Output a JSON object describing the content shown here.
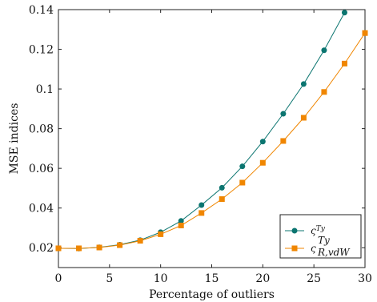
{
  "chart_data": {
    "type": "line",
    "xlabel": "Percentage of outliers",
    "ylabel": "MSE indices",
    "xlim": [
      0,
      30
    ],
    "ylim": [
      0.01,
      0.14
    ],
    "xticks": [
      0,
      5,
      10,
      15,
      20,
      25,
      30
    ],
    "yticks": [
      0.02,
      0.04,
      0.06,
      0.08,
      0.1,
      0.12,
      0.14
    ],
    "ytick_labels": [
      "0.02",
      "0.04",
      "0.06",
      "0.08",
      "0.1",
      "0.12",
      "0.14"
    ],
    "legend_position": "bottom-right",
    "grid": false,
    "x": [
      0,
      2,
      4,
      6,
      8,
      10,
      12,
      14,
      16,
      18,
      20,
      22,
      24,
      26,
      28,
      30
    ],
    "series": [
      {
        "name": "ς_Ty",
        "legend_main": "ς",
        "legend_sub": "Ty",
        "legend_sup": "",
        "color": "#0b7570",
        "marker": "circle",
        "values": [
          0.0197,
          0.0196,
          0.0202,
          0.0215,
          0.0238,
          0.0278,
          0.0335,
          0.0415,
          0.0502,
          0.061,
          0.0735,
          0.0875,
          0.1025,
          0.1195,
          0.1385,
          null
        ]
      },
      {
        "name": "ς_R,vdW^Ty",
        "legend_main": "ς",
        "legend_sub": "R,vdW",
        "legend_sup": "Ty",
        "color": "#f08600",
        "marker": "square",
        "values": [
          0.0197,
          0.0197,
          0.0201,
          0.0213,
          0.0235,
          0.0268,
          0.0312,
          0.0375,
          0.0445,
          0.0528,
          0.0628,
          0.0738,
          0.0855,
          0.0985,
          0.1128,
          0.1282
        ]
      }
    ]
  }
}
